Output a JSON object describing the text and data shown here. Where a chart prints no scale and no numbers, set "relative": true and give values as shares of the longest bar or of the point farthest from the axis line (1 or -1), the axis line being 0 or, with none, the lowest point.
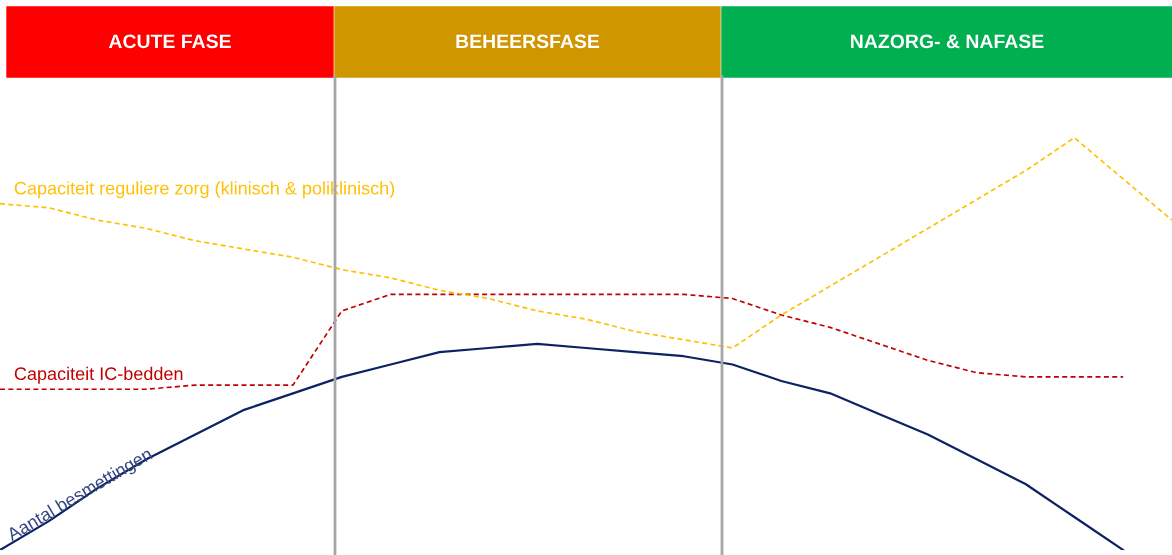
{
  "chart_data": {
    "type": "line",
    "relative": true,
    "legend": false,
    "line_style": "dashed",
    "marker": "none",
    "categories": [
      null,
      null,
      null,
      null,
      null,
      null,
      null,
      null,
      null,
      null,
      null,
      null,
      null,
      null,
      null,
      null,
      null,
      null,
      null,
      null,
      null,
      null,
      null,
      null,
      null
    ],
    "series": [
      {
        "name": "Aantal besmettingen",
        "color": "#0d2263",
        "line_style": "solid",
        "values": [
          0.0,
          0.07,
          0.15,
          0.22,
          0.28,
          0.34,
          0.38,
          0.42,
          0.45,
          0.48,
          0.49,
          0.5,
          0.49,
          0.48,
          0.47,
          0.45,
          0.41,
          0.38,
          0.33,
          0.28,
          0.22,
          0.16,
          0.08,
          0.0,
          null
        ]
      },
      {
        "name": "Capaciteit IC-bedden",
        "color": "#c00000",
        "values": [
          0.39,
          0.39,
          0.39,
          0.39,
          0.4,
          0.4,
          0.4,
          0.58,
          0.62,
          0.62,
          0.62,
          0.62,
          0.62,
          0.62,
          0.62,
          0.61,
          0.57,
          0.54,
          0.5,
          0.46,
          0.43,
          0.42,
          0.42,
          0.42,
          null
        ]
      },
      {
        "name": "Capaciteit reguliere zorg (klinisch & poliklinisch)",
        "color": "#ffc000",
        "values": [
          0.84,
          0.83,
          0.8,
          0.78,
          0.75,
          0.73,
          0.71,
          0.68,
          0.66,
          0.63,
          0.61,
          0.58,
          0.56,
          0.53,
          0.51,
          0.49,
          0.57,
          0.64,
          0.71,
          0.78,
          0.85,
          0.92,
          1.0,
          0.9,
          0.8
        ]
      }
    ],
    "annotations": [
      "ACUTE FASE",
      "BEHEERSFASE",
      "NAZORG- & NAFASE"
    ]
  }
}
